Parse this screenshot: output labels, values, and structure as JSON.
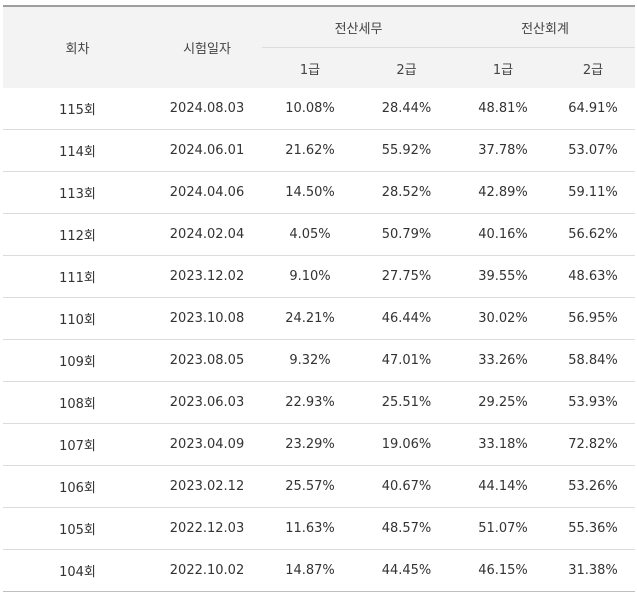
{
  "table": {
    "headers": {
      "round": "회차",
      "date": "시험일자",
      "tax_group": "전산세무",
      "acct_group": "전산회계",
      "grade1": "1급",
      "grade2": "2급"
    },
    "rows": [
      {
        "round": "115회",
        "date": "2024.08.03",
        "tax1": "10.08%",
        "tax2": "28.44%",
        "acct1": "48.81%",
        "acct2": "64.91%"
      },
      {
        "round": "114회",
        "date": "2024.06.01",
        "tax1": "21.62%",
        "tax2": "55.92%",
        "acct1": "37.78%",
        "acct2": "53.07%"
      },
      {
        "round": "113회",
        "date": "2024.04.06",
        "tax1": "14.50%",
        "tax2": "28.52%",
        "acct1": "42.89%",
        "acct2": "59.11%"
      },
      {
        "round": "112회",
        "date": "2024.02.04",
        "tax1": "4.05%",
        "tax2": "50.79%",
        "acct1": "40.16%",
        "acct2": "56.62%"
      },
      {
        "round": "111회",
        "date": "2023.12.02",
        "tax1": "9.10%",
        "tax2": "27.75%",
        "acct1": "39.55%",
        "acct2": "48.63%"
      },
      {
        "round": "110회",
        "date": "2023.10.08",
        "tax1": "24.21%",
        "tax2": "46.44%",
        "acct1": "30.02%",
        "acct2": "56.95%"
      },
      {
        "round": "109회",
        "date": "2023.08.05",
        "tax1": "9.32%",
        "tax2": "47.01%",
        "acct1": "33.26%",
        "acct2": "58.84%"
      },
      {
        "round": "108회",
        "date": "2023.06.03",
        "tax1": "22.93%",
        "tax2": "25.51%",
        "acct1": "29.25%",
        "acct2": "53.93%"
      },
      {
        "round": "107회",
        "date": "2023.04.09",
        "tax1": "23.29%",
        "tax2": "19.06%",
        "acct1": "33.18%",
        "acct2": "72.82%"
      },
      {
        "round": "106회",
        "date": "2023.02.12",
        "tax1": "25.57%",
        "tax2": "40.67%",
        "acct1": "44.14%",
        "acct2": "53.26%"
      },
      {
        "round": "105회",
        "date": "2022.12.03",
        "tax1": "11.63%",
        "tax2": "48.57%",
        "acct1": "51.07%",
        "acct2": "55.36%"
      },
      {
        "round": "104회",
        "date": "2022.10.02",
        "tax1": "14.87%",
        "tax2": "44.45%",
        "acct1": "46.15%",
        "acct2": "31.38%"
      }
    ]
  }
}
